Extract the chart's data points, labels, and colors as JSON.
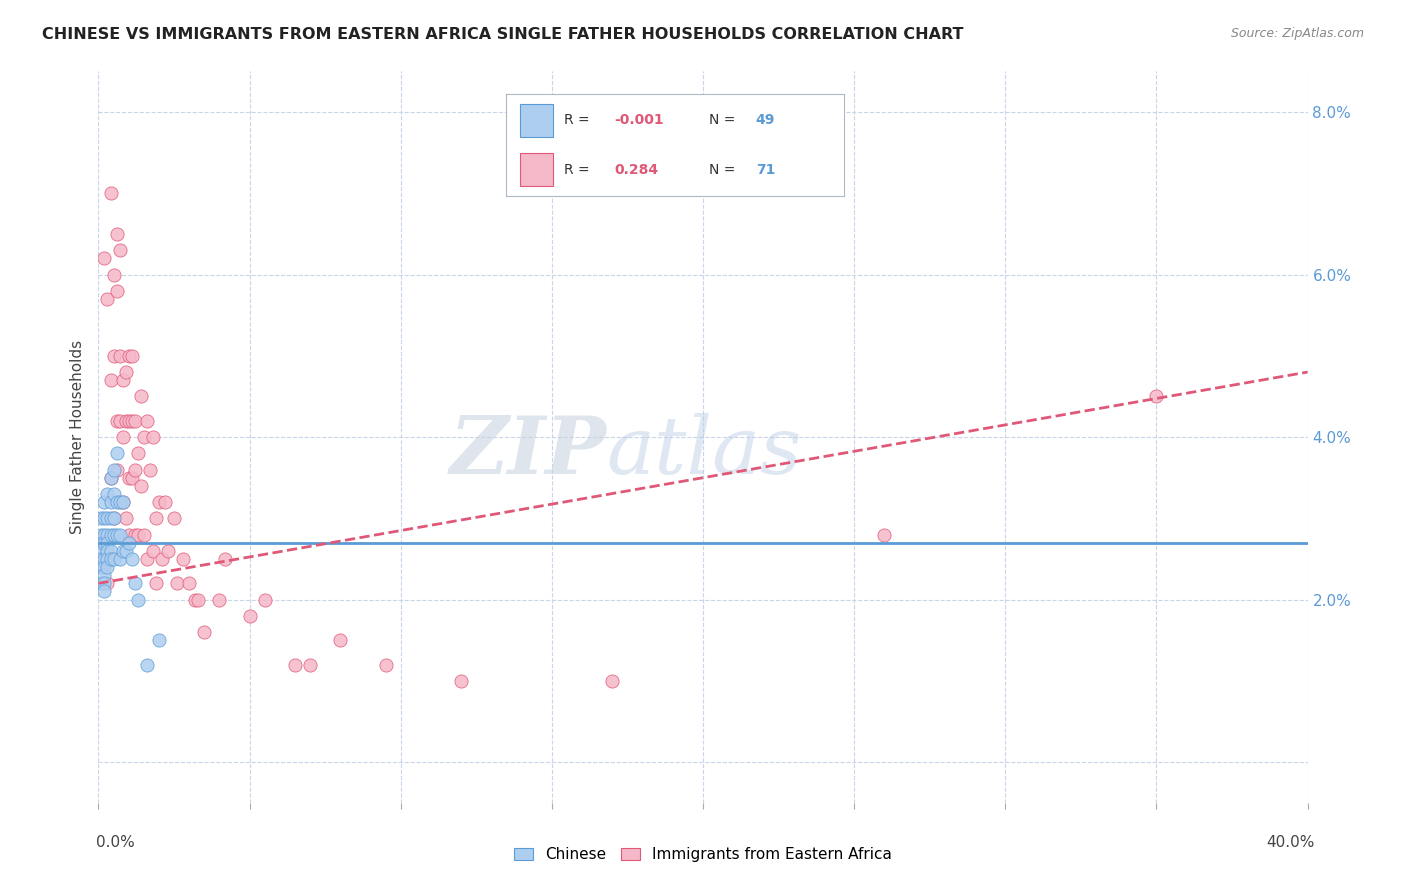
{
  "title": "CHINESE VS IMMIGRANTS FROM EASTERN AFRICA SINGLE FATHER HOUSEHOLDS CORRELATION CHART",
  "source": "Source: ZipAtlas.com",
  "ylabel": "Single Father Households",
  "xlim": [
    0.0,
    0.4
  ],
  "ylim": [
    -0.005,
    0.085
  ],
  "x_ticks": [
    0.0,
    0.05,
    0.1,
    0.15,
    0.2,
    0.25,
    0.3,
    0.35,
    0.4
  ],
  "y_ticks": [
    0.0,
    0.02,
    0.04,
    0.06,
    0.08
  ],
  "y_tick_labels_right": [
    "",
    "2.0%",
    "4.0%",
    "6.0%",
    "8.0%"
  ],
  "legend_entry1": {
    "label": "Chinese",
    "R": "-0.001",
    "N": "49",
    "color": "#aecef0",
    "line_color": "#5b9bd5"
  },
  "legend_entry2": {
    "label": "Immigrants from Eastern Africa",
    "R": "0.284",
    "N": "71",
    "color": "#f5b8c8",
    "line_color": "#e05878"
  },
  "watermark_zip": "ZIP",
  "watermark_atlas": "atlas",
  "background_color": "#ffffff",
  "grid_color": "#c8d4e8",
  "chinese_scatter_x": [
    0.001,
    0.001,
    0.001,
    0.001,
    0.001,
    0.001,
    0.001,
    0.002,
    0.002,
    0.002,
    0.002,
    0.002,
    0.002,
    0.002,
    0.002,
    0.002,
    0.003,
    0.003,
    0.003,
    0.003,
    0.003,
    0.003,
    0.003,
    0.004,
    0.004,
    0.004,
    0.004,
    0.004,
    0.004,
    0.005,
    0.005,
    0.005,
    0.005,
    0.005,
    0.006,
    0.006,
    0.006,
    0.007,
    0.007,
    0.007,
    0.008,
    0.008,
    0.009,
    0.01,
    0.011,
    0.012,
    0.013,
    0.016,
    0.02
  ],
  "chinese_scatter_y": [
    0.03,
    0.028,
    0.027,
    0.026,
    0.025,
    0.024,
    0.022,
    0.032,
    0.03,
    0.028,
    0.027,
    0.025,
    0.024,
    0.023,
    0.022,
    0.021,
    0.033,
    0.03,
    0.028,
    0.027,
    0.026,
    0.025,
    0.024,
    0.035,
    0.032,
    0.03,
    0.028,
    0.026,
    0.025,
    0.036,
    0.033,
    0.03,
    0.028,
    0.025,
    0.038,
    0.032,
    0.028,
    0.032,
    0.028,
    0.025,
    0.032,
    0.026,
    0.026,
    0.027,
    0.025,
    0.022,
    0.02,
    0.012,
    0.015
  ],
  "eastern_africa_scatter_x": [
    0.001,
    0.002,
    0.002,
    0.003,
    0.003,
    0.003,
    0.004,
    0.004,
    0.004,
    0.005,
    0.005,
    0.005,
    0.006,
    0.006,
    0.006,
    0.006,
    0.007,
    0.007,
    0.007,
    0.008,
    0.008,
    0.008,
    0.009,
    0.009,
    0.009,
    0.01,
    0.01,
    0.01,
    0.01,
    0.011,
    0.011,
    0.011,
    0.012,
    0.012,
    0.012,
    0.013,
    0.013,
    0.014,
    0.014,
    0.015,
    0.015,
    0.016,
    0.016,
    0.017,
    0.018,
    0.018,
    0.019,
    0.019,
    0.02,
    0.021,
    0.022,
    0.023,
    0.025,
    0.026,
    0.028,
    0.03,
    0.032,
    0.033,
    0.035,
    0.04,
    0.042,
    0.05,
    0.055,
    0.065,
    0.07,
    0.08,
    0.095,
    0.12,
    0.17,
    0.26,
    0.35
  ],
  "eastern_africa_scatter_y": [
    0.027,
    0.062,
    0.025,
    0.057,
    0.025,
    0.022,
    0.07,
    0.047,
    0.035,
    0.06,
    0.05,
    0.03,
    0.065,
    0.058,
    0.042,
    0.036,
    0.063,
    0.05,
    0.042,
    0.047,
    0.04,
    0.032,
    0.048,
    0.042,
    0.03,
    0.05,
    0.042,
    0.035,
    0.028,
    0.05,
    0.042,
    0.035,
    0.042,
    0.036,
    0.028,
    0.038,
    0.028,
    0.045,
    0.034,
    0.04,
    0.028,
    0.042,
    0.025,
    0.036,
    0.04,
    0.026,
    0.03,
    0.022,
    0.032,
    0.025,
    0.032,
    0.026,
    0.03,
    0.022,
    0.025,
    0.022,
    0.02,
    0.02,
    0.016,
    0.02,
    0.025,
    0.018,
    0.02,
    0.012,
    0.012,
    0.015,
    0.012,
    0.01,
    0.01,
    0.028,
    0.045
  ],
  "chinese_line_x": [
    0.0,
    0.4
  ],
  "chinese_line_y": [
    0.027,
    0.027
  ],
  "eastern_africa_line_x": [
    0.0,
    0.4
  ],
  "eastern_africa_line_y": [
    0.022,
    0.048
  ]
}
